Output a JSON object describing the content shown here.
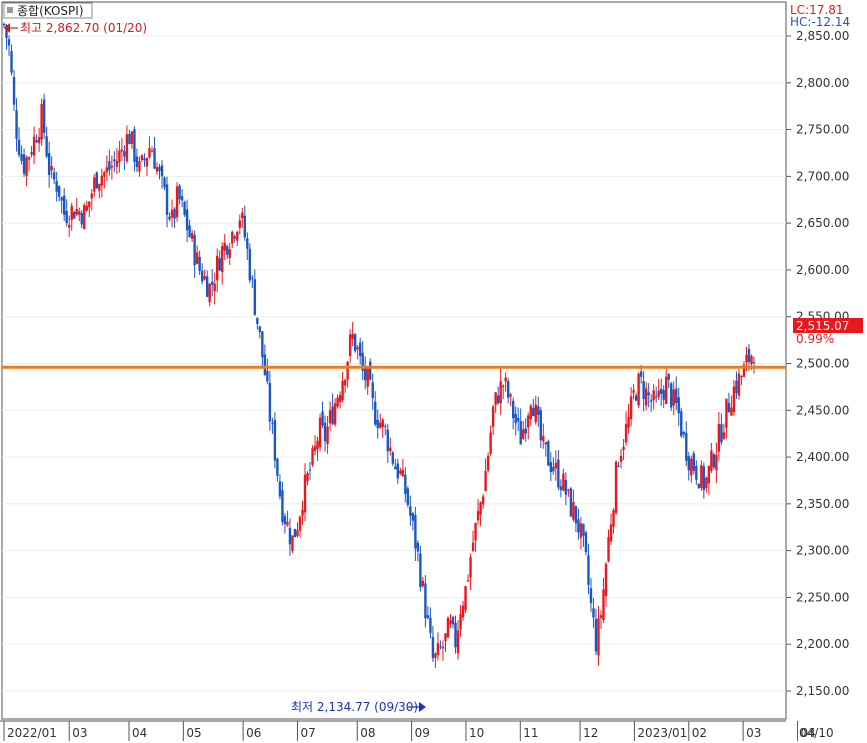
{
  "header": {
    "title": "종합(KOSPI)",
    "lc_label": "LC:17.81",
    "hc_label": "HC:-12.14"
  },
  "annotations": {
    "high_text": "최고 2,862.70 (01/20)",
    "low_text": "최저 2,134.77 (09/30)",
    "last_price_label": "2,515.07",
    "last_change_label": "0.99%"
  },
  "colors": {
    "up": "#e8191e",
    "down": "#1a57c6",
    "resistance": "#f07b1e",
    "last_price_bg": "#e8191e",
    "lc_color": "#e8191e",
    "hc_color": "#1a57c6",
    "high_color": "#d11a1a",
    "low_color": "#1a33b8"
  },
  "chart_data": {
    "type": "candlestick",
    "title": "종합(KOSPI)",
    "y_ticks": [
      "2,850.00",
      "2,800.00",
      "2,750.00",
      "2,700.00",
      "2,650.00",
      "2,600.00",
      "2,550.00",
      "2,500.00",
      "2,450.00",
      "2,400.00",
      "2,350.00",
      "2,300.00",
      "2,250.00",
      "2,200.00",
      "2,150.00"
    ],
    "y_values": [
      2850,
      2800,
      2750,
      2700,
      2650,
      2600,
      2550,
      2500,
      2450,
      2400,
      2350,
      2300,
      2250,
      2200,
      2150
    ],
    "ylim": [
      2125,
      2875
    ],
    "x_ticks": [
      "2022/01",
      "03",
      "04",
      "05",
      "06",
      "07",
      "08",
      "09",
      "10",
      "11",
      "12",
      "2023/01",
      "02",
      "03",
      "04"
    ],
    "x_tick_positions": [
      0,
      1.2,
      2.3,
      3.3,
      4.4,
      5.4,
      6.5,
      7.5,
      8.5,
      9.5,
      10.6,
      11.6,
      12.6,
      13.6,
      14.6
    ],
    "x_right_label": "04/10",
    "resistance_level": 2496,
    "high": {
      "value": 2862.7,
      "date": "01/20"
    },
    "low": {
      "value": 2134.77,
      "date": "09/30"
    },
    "last_close": 2515.07,
    "last_change_pct": 0.99,
    "lc": 17.81,
    "hc": -12.14,
    "close_path": [
      [
        0.0,
        2862
      ],
      [
        0.1,
        2835
      ],
      [
        0.2,
        2760
      ],
      [
        0.35,
        2710
      ],
      [
        0.5,
        2730
      ],
      [
        0.7,
        2765
      ],
      [
        0.85,
        2700
      ],
      [
        1.0,
        2690
      ],
      [
        1.1,
        2660
      ],
      [
        1.3,
        2665
      ],
      [
        1.5,
        2660
      ],
      [
        1.7,
        2700
      ],
      [
        1.9,
        2705
      ],
      [
        2.1,
        2720
      ],
      [
        2.3,
        2745
      ],
      [
        2.5,
        2705
      ],
      [
        2.7,
        2735
      ],
      [
        2.9,
        2690
      ],
      [
        3.1,
        2650
      ],
      [
        3.2,
        2680
      ],
      [
        3.4,
        2640
      ],
      [
        3.6,
        2600
      ],
      [
        3.8,
        2580
      ],
      [
        4.0,
        2620
      ],
      [
        4.2,
        2640
      ],
      [
        4.35,
        2660
      ],
      [
        4.45,
        2630
      ],
      [
        4.55,
        2590
      ],
      [
        4.7,
        2530
      ],
      [
        4.8,
        2490
      ],
      [
        4.9,
        2440
      ],
      [
        5.0,
        2400
      ],
      [
        5.1,
        2350
      ],
      [
        5.2,
        2330
      ],
      [
        5.3,
        2310
      ],
      [
        5.4,
        2330
      ],
      [
        5.5,
        2360
      ],
      [
        5.6,
        2380
      ],
      [
        5.7,
        2400
      ],
      [
        5.8,
        2430
      ],
      [
        5.9,
        2420
      ],
      [
        6.0,
        2440
      ],
      [
        6.1,
        2460
      ],
      [
        6.2,
        2480
      ],
      [
        6.3,
        2500
      ],
      [
        6.4,
        2530
      ],
      [
        6.5,
        2515
      ],
      [
        6.6,
        2490
      ],
      [
        6.7,
        2480
      ],
      [
        6.8,
        2450
      ],
      [
        6.9,
        2440
      ],
      [
        7.0,
        2430
      ],
      [
        7.1,
        2410
      ],
      [
        7.2,
        2390
      ],
      [
        7.3,
        2380
      ],
      [
        7.4,
        2360
      ],
      [
        7.5,
        2330
      ],
      [
        7.6,
        2300
      ],
      [
        7.7,
        2260
      ],
      [
        7.8,
        2220
      ],
      [
        7.9,
        2180
      ],
      [
        8.0,
        2190
      ],
      [
        8.1,
        2200
      ],
      [
        8.2,
        2220
      ],
      [
        8.3,
        2200
      ],
      [
        8.4,
        2240
      ],
      [
        8.5,
        2260
      ],
      [
        8.6,
        2300
      ],
      [
        8.7,
        2330
      ],
      [
        8.8,
        2360
      ],
      [
        8.9,
        2400
      ],
      [
        9.0,
        2450
      ],
      [
        9.1,
        2470
      ],
      [
        9.2,
        2480
      ],
      [
        9.3,
        2460
      ],
      [
        9.4,
        2440
      ],
      [
        9.5,
        2420
      ],
      [
        9.6,
        2440
      ],
      [
        9.7,
        2470
      ],
      [
        9.8,
        2440
      ],
      [
        9.9,
        2410
      ],
      [
        10.0,
        2400
      ],
      [
        10.1,
        2390
      ],
      [
        10.2,
        2380
      ],
      [
        10.3,
        2370
      ],
      [
        10.4,
        2350
      ],
      [
        10.5,
        2340
      ],
      [
        10.6,
        2320
      ],
      [
        10.7,
        2290
      ],
      [
        10.8,
        2240
      ],
      [
        10.9,
        2200
      ],
      [
        11.0,
        2240
      ],
      [
        11.1,
        2300
      ],
      [
        11.2,
        2350
      ],
      [
        11.3,
        2400
      ],
      [
        11.4,
        2420
      ],
      [
        11.5,
        2440
      ],
      [
        11.6,
        2470
      ],
      [
        11.7,
        2480
      ],
      [
        11.8,
        2470
      ],
      [
        11.9,
        2460
      ],
      [
        12.0,
        2455
      ],
      [
        12.1,
        2470
      ],
      [
        12.2,
        2480
      ],
      [
        12.3,
        2460
      ],
      [
        12.4,
        2450
      ],
      [
        12.5,
        2420
      ],
      [
        12.6,
        2400
      ],
      [
        12.7,
        2390
      ],
      [
        12.8,
        2380
      ],
      [
        12.9,
        2370
      ],
      [
        13.0,
        2390
      ],
      [
        13.1,
        2410
      ],
      [
        13.2,
        2430
      ],
      [
        13.3,
        2450
      ],
      [
        13.4,
        2470
      ],
      [
        13.5,
        2480
      ],
      [
        13.6,
        2490
      ],
      [
        13.7,
        2505
      ],
      [
        13.8,
        2515
      ]
    ]
  }
}
